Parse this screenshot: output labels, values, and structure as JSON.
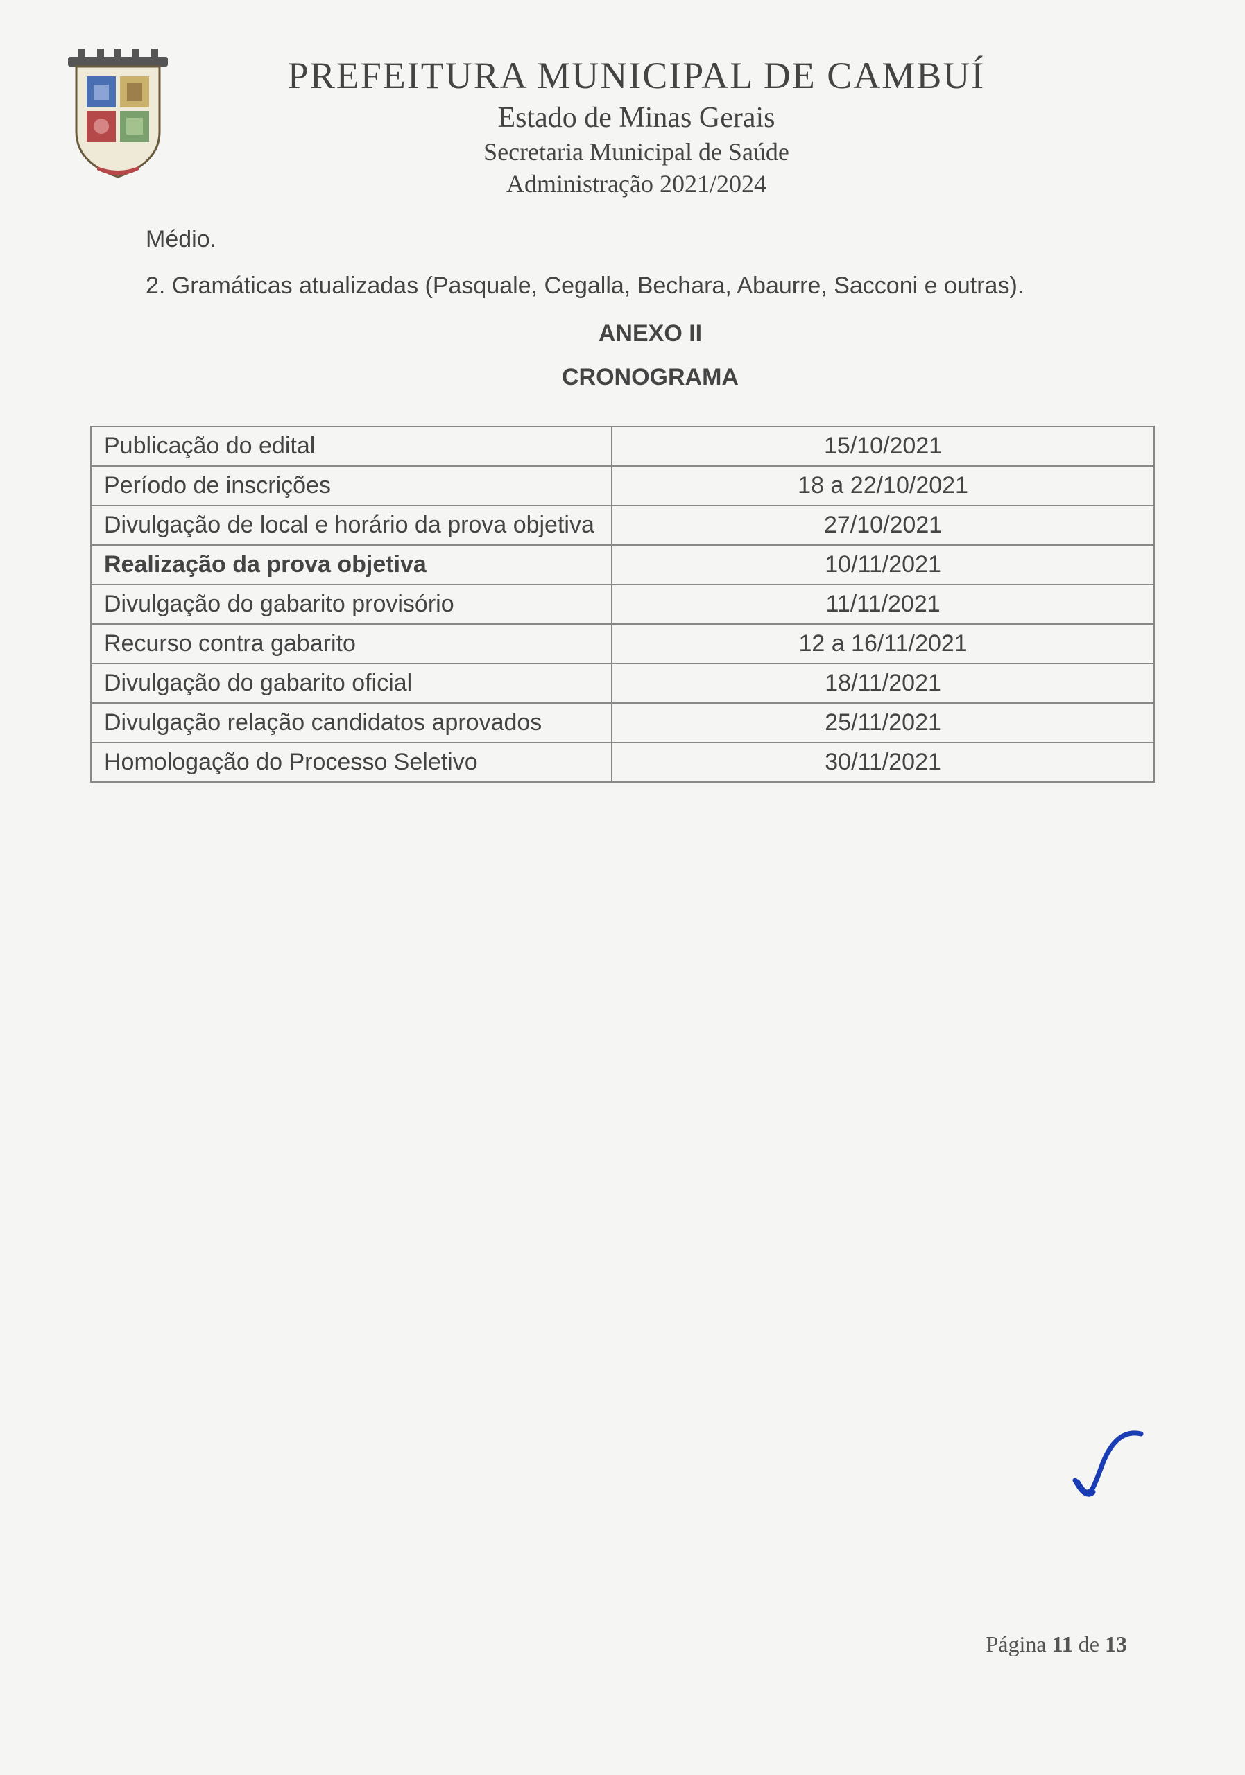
{
  "header": {
    "title": "PREFEITURA MUNICIPAL DE CAMBUÍ",
    "subtitle1": "Estado de Minas Gerais",
    "subtitle2": "Secretaria Municipal de Saúde",
    "subtitle3": "Administração 2021/2024"
  },
  "body": {
    "line1": "Médio.",
    "line2": "2. Gramáticas atualizadas (Pasquale, Cegalla, Bechara, Abaurre, Sacconi e outras).",
    "anexo": "ANEXO II",
    "cronograma": "CRONOGRAMA"
  },
  "table": {
    "rows": [
      {
        "label": "Publicação do edital",
        "date": "15/10/2021",
        "bold": false
      },
      {
        "label": "Período de inscrições",
        "date": "18 a 22/10/2021",
        "bold": false
      },
      {
        "label": "Divulgação de local e horário da prova objetiva",
        "date": "27/10/2021",
        "bold": false
      },
      {
        "label": "Realização da prova objetiva",
        "date": "10/11/2021",
        "bold": true
      },
      {
        "label": "Divulgação do gabarito provisório",
        "date": "11/11/2021",
        "bold": false
      },
      {
        "label": "Recurso contra gabarito",
        "date": "12 a 16/11/2021",
        "bold": false
      },
      {
        "label": "Divulgação do gabarito oficial",
        "date": "18/11/2021",
        "bold": false
      },
      {
        "label": "Divulgação relação candidatos aprovados",
        "date": "25/11/2021",
        "bold": false
      },
      {
        "label": "Homologação do Processo Seletivo",
        "date": "30/11/2021",
        "bold": false
      }
    ]
  },
  "footer": {
    "page_prefix": "Página ",
    "page_num": "11",
    "page_mid": " de ",
    "page_total": "13"
  },
  "colors": {
    "text": "#444444",
    "border": "#888888",
    "background": "#f5f5f3",
    "signature": "#1a3db5"
  }
}
